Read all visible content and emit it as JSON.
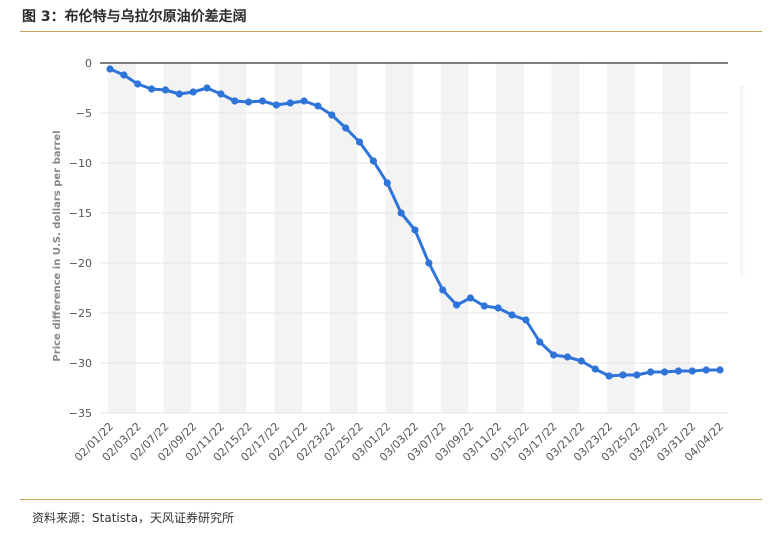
{
  "figure": {
    "title": "图 3：布伦特与乌拉尔原油价差走阔",
    "source_label": "资料来源：",
    "source_text": "Statista，天风证券研究所"
  },
  "colors": {
    "line": "#2f74d8",
    "rule": "#c8a25a",
    "zero_line": "#555555",
    "band": "#f3f3f3",
    "grid": "#e6e6e6"
  },
  "chart_data": {
    "type": "line",
    "title": "",
    "xlabel": "",
    "ylabel": "Price difference in U.S. dollars per barrel",
    "ylim": [
      -35,
      0
    ],
    "yticks": [
      0,
      -5,
      -10,
      -15,
      -20,
      -25,
      -30,
      -35
    ],
    "grid": true,
    "x_tick_labels": [
      "02/01/22",
      "02/03/22",
      "02/07/22",
      "02/09/22",
      "02/11/22",
      "02/15/22",
      "02/17/22",
      "02/21/22",
      "02/23/22",
      "02/25/22",
      "03/01/22",
      "03/03/22",
      "03/07/22",
      "03/09/22",
      "03/11/22",
      "03/15/22",
      "03/17/22",
      "03/21/22",
      "03/23/22",
      "03/25/22",
      "03/29/22",
      "03/31/22",
      "04/04/22"
    ],
    "series": [
      {
        "name": "",
        "x": [
          "02/01/22",
          "02/02/22",
          "02/03/22",
          "02/04/22",
          "02/07/22",
          "02/08/22",
          "02/09/22",
          "02/10/22",
          "02/11/22",
          "02/14/22",
          "02/15/22",
          "02/16/22",
          "02/17/22",
          "02/18/22",
          "02/21/22",
          "02/22/22",
          "02/23/22",
          "02/24/22",
          "02/25/22",
          "02/28/22",
          "03/01/22",
          "03/02/22",
          "03/03/22",
          "03/04/22",
          "03/07/22",
          "03/08/22",
          "03/09/22",
          "03/10/22",
          "03/11/22",
          "03/14/22",
          "03/15/22",
          "03/16/22",
          "03/17/22",
          "03/18/22",
          "03/21/22",
          "03/22/22",
          "03/23/22",
          "03/24/22",
          "03/25/22",
          "03/28/22",
          "03/29/22",
          "03/30/22",
          "03/31/22",
          "04/01/22",
          "04/04/22"
        ],
        "values": [
          -0.6,
          -1.2,
          -2.1,
          -2.6,
          -2.7,
          -3.1,
          -2.9,
          -2.5,
          -3.1,
          -3.8,
          -3.9,
          -3.8,
          -4.2,
          -4.0,
          -3.8,
          -4.3,
          -5.2,
          -6.5,
          -7.9,
          -9.8,
          -12.0,
          -15.0,
          -16.7,
          -20.0,
          -22.7,
          -24.2,
          -23.5,
          -24.3,
          -24.5,
          -25.2,
          -25.7,
          -27.9,
          -29.2,
          -29.4,
          -29.8,
          -30.6,
          -31.3,
          -31.2,
          -31.2,
          -30.9,
          -30.9,
          -30.8,
          -30.8,
          -30.7,
          -30.7
        ]
      }
    ]
  }
}
